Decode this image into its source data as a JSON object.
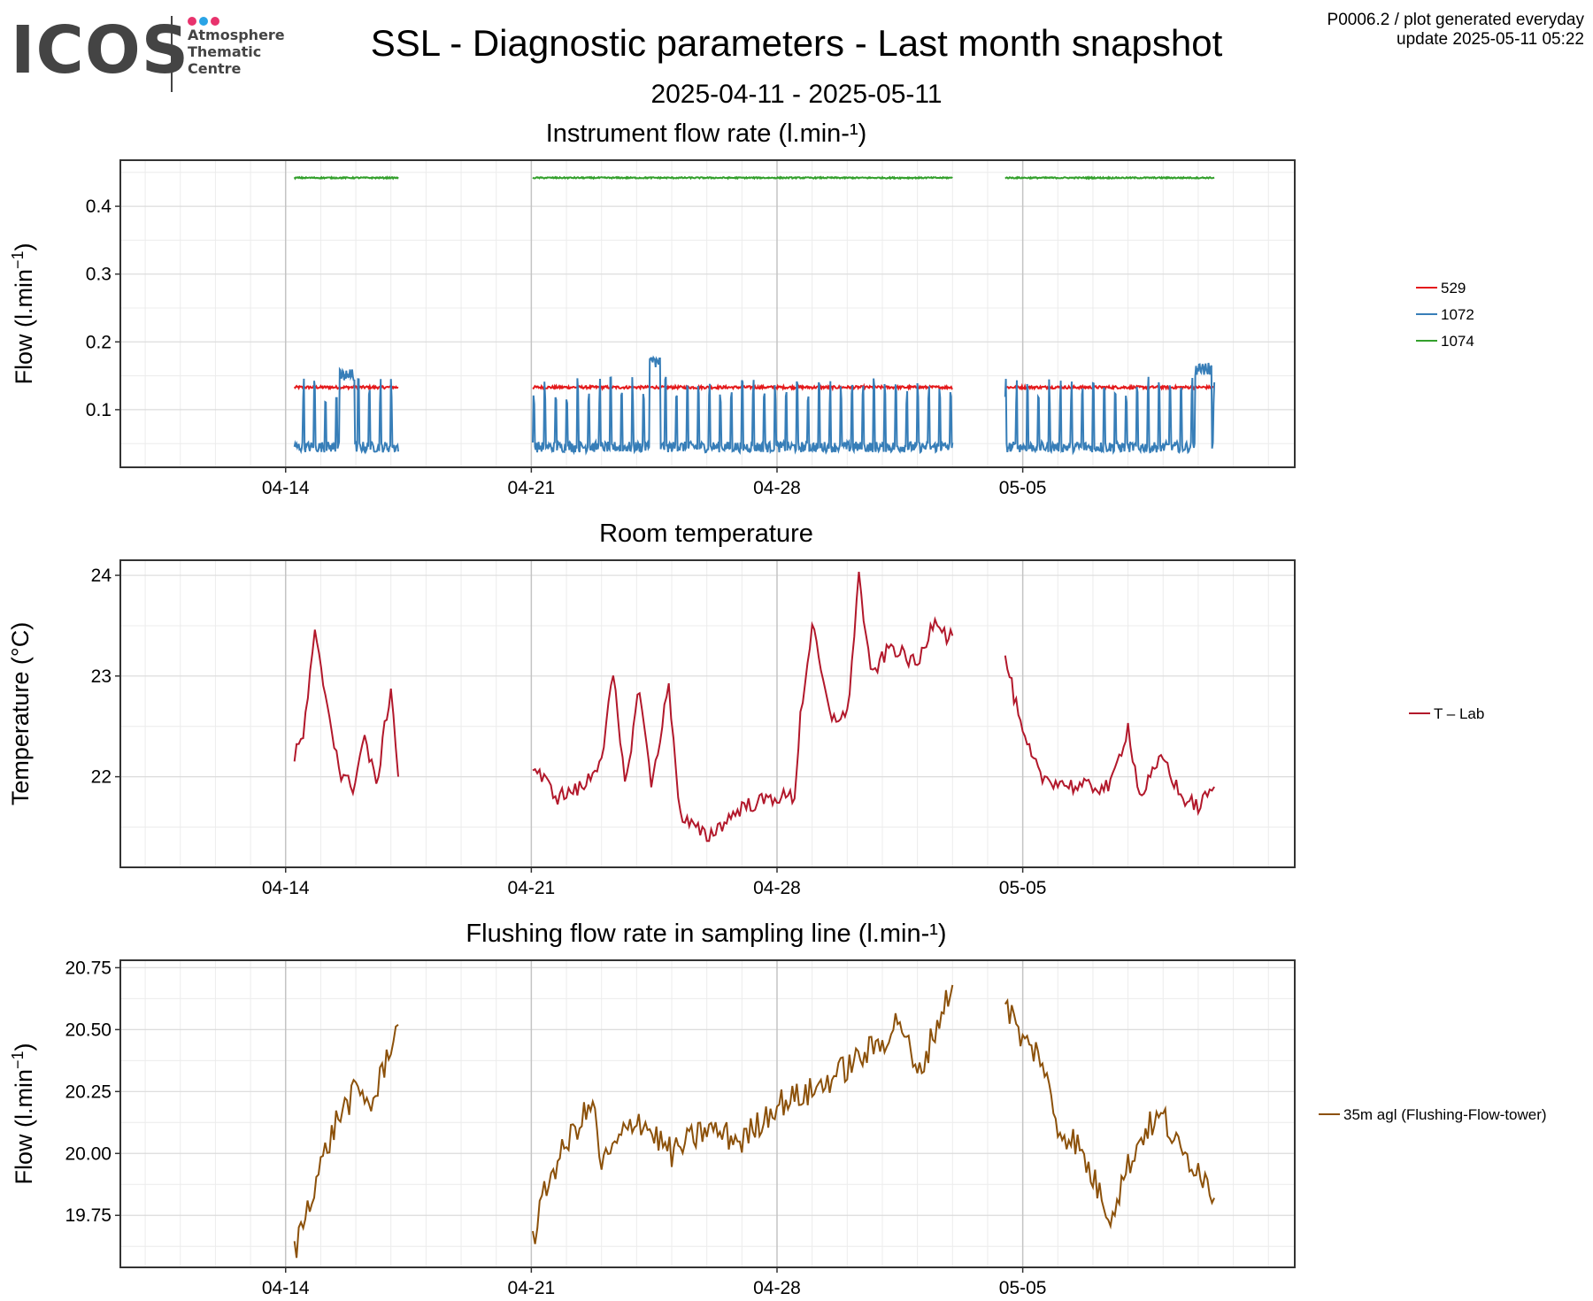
{
  "header": {
    "logo": {
      "text": "ICOS",
      "sub_lines": [
        "Atmosphere",
        "Thematic",
        "Centre"
      ],
      "dot_colors": [
        "#e8336d",
        "#2aa4e6",
        "#e8336d"
      ]
    },
    "title": "SSL - Diagnostic parameters - Last month snapshot",
    "subtitle": "2025-04-11 - 2025-05-11",
    "meta_line1": "P0006.2 / plot generated everyday",
    "meta_line2": "update  2025-05-11 05:22"
  },
  "chart_data": [
    {
      "type": "line",
      "title": "Instrument flow rate (l.min-¹)",
      "ylabel": "Flow (l.min",
      "ylabel_superscript": "−1",
      "ylabel_suffix": ")",
      "x_axis": {
        "type": "date",
        "range": [
          "2025-04-09 07:00",
          "2025-05-12 18:00"
        ],
        "ticks": [
          "2025-04-14",
          "2025-04-21",
          "2025-04-28",
          "2025-05-05"
        ],
        "tick_labels": [
          "04-14",
          "04-21",
          "04-28",
          "05-05"
        ]
      },
      "y_axis": {
        "range": [
          0.015,
          0.468
        ],
        "ticks": [
          0.1,
          0.2,
          0.3,
          0.4
        ],
        "tick_labels": [
          "0.1",
          "0.2",
          "0.3",
          "0.4"
        ]
      },
      "grid": true,
      "legend_position": "right",
      "series": [
        {
          "name": "529",
          "color": "#e41a1c",
          "kind": "flat",
          "base": 0.133,
          "noise": 0.002,
          "segments": [
            [
              "2025-04-14 06:00",
              "2025-04-17 05:00"
            ],
            [
              "2025-04-21 01:00",
              "2025-05-03 00:00"
            ],
            [
              "2025-05-04 12:00",
              "2025-05-10 11:00"
            ]
          ]
        },
        {
          "name": "1072",
          "color": "#377eb8",
          "kind": "spiky",
          "base": 0.045,
          "noise": 0.008,
          "spike": 0.09,
          "segments": [
            [
              "2025-04-14 06:00",
              "2025-04-17 05:00"
            ],
            [
              "2025-04-21 01:00",
              "2025-05-03 00:00"
            ],
            [
              "2025-05-04 12:00",
              "2025-05-10 11:00"
            ]
          ],
          "plateaus": [
            [
              "2025-04-15 13:00",
              "2025-04-15 23:00",
              0.15
            ],
            [
              "2025-04-24 09:00",
              "2025-04-24 16:00",
              0.17
            ],
            [
              "2025-05-09 22:00",
              "2025-05-10 09:00",
              0.16
            ]
          ]
        },
        {
          "name": "1074",
          "color": "#33a02c",
          "kind": "flat",
          "base": 0.442,
          "noise": 0.001,
          "segments": [
            [
              "2025-04-14 06:00",
              "2025-04-17 05:00"
            ],
            [
              "2025-04-21 01:00",
              "2025-05-03 00:00"
            ],
            [
              "2025-05-04 12:00",
              "2025-05-10 11:00"
            ]
          ]
        }
      ]
    },
    {
      "type": "line",
      "title": "Room temperature",
      "ylabel": "Temperature (°C)",
      "x_axis": {
        "type": "date",
        "range": [
          "2025-04-09 07:00",
          "2025-05-12 18:00"
        ],
        "ticks": [
          "2025-04-14",
          "2025-04-21",
          "2025-04-28",
          "2025-05-05"
        ],
        "tick_labels": [
          "04-14",
          "04-21",
          "04-28",
          "05-05"
        ]
      },
      "y_axis": {
        "range": [
          21.1,
          24.15
        ],
        "ticks": [
          22,
          23,
          24
        ],
        "tick_labels": [
          "22",
          "23",
          "24"
        ]
      },
      "grid": true,
      "legend_position": "right",
      "series": [
        {
          "name": "T – Lab",
          "color": "#b2182b",
          "kind": "path",
          "noise": 0.08,
          "segments": [
            [
              [
                "2025-04-14 06:00",
                22.2
              ],
              [
                "2025-04-14 12:00",
                22.4
              ],
              [
                "2025-04-14 20:00",
                23.4
              ],
              [
                "2025-04-15 06:00",
                22.6
              ],
              [
                "2025-04-15 14:00",
                22.0
              ],
              [
                "2025-04-15 22:00",
                21.9
              ],
              [
                "2025-04-16 06:00",
                22.4
              ],
              [
                "2025-04-16 14:00",
                21.9
              ],
              [
                "2025-04-17 00:00",
                22.9
              ],
              [
                "2025-04-17 05:00",
                22.0
              ]
            ],
            [
              [
                "2025-04-21 01:00",
                22.1
              ],
              [
                "2025-04-21 18:00",
                21.8
              ],
              [
                "2025-04-22 12:00",
                21.9
              ],
              [
                "2025-04-23 00:00",
                22.2
              ],
              [
                "2025-04-23 08:00",
                23.0
              ],
              [
                "2025-04-23 16:00",
                21.9
              ],
              [
                "2025-04-24 02:00",
                22.9
              ],
              [
                "2025-04-24 10:00",
                21.9
              ],
              [
                "2025-04-24 22:00",
                22.9
              ],
              [
                "2025-04-25 06:00",
                21.6
              ],
              [
                "2025-04-26 00:00",
                21.4
              ],
              [
                "2025-04-27 00:00",
                21.7
              ],
              [
                "2025-04-28 00:00",
                21.8
              ],
              [
                "2025-04-28 12:00",
                21.8
              ],
              [
                "2025-04-28 16:00",
                22.6
              ],
              [
                "2025-04-29 00:00",
                23.5
              ],
              [
                "2025-04-29 12:00",
                22.6
              ],
              [
                "2025-04-30 00:00",
                22.6
              ],
              [
                "2025-04-30 08:00",
                24.0
              ],
              [
                "2025-04-30 16:00",
                23.0
              ],
              [
                "2025-05-01 06:00",
                23.3
              ],
              [
                "2025-05-02 00:00",
                23.1
              ],
              [
                "2025-05-02 12:00",
                23.6
              ],
              [
                "2025-05-02 20:00",
                23.4
              ],
              [
                "2025-05-03 00:00",
                23.4
              ]
            ],
            [
              [
                "2025-05-04 12:00",
                23.2
              ],
              [
                "2025-05-05 00:00",
                22.4
              ],
              [
                "2025-05-05 12:00",
                22.0
              ],
              [
                "2025-05-06 12:00",
                21.9
              ],
              [
                "2025-05-07 12:00",
                21.9
              ],
              [
                "2025-05-08 00:00",
                22.5
              ],
              [
                "2025-05-08 08:00",
                21.8
              ],
              [
                "2025-05-09 00:00",
                22.2
              ],
              [
                "2025-05-09 12:00",
                21.8
              ],
              [
                "2025-05-10 00:00",
                21.7
              ],
              [
                "2025-05-10 11:00",
                21.9
              ]
            ]
          ]
        }
      ]
    },
    {
      "type": "line",
      "title": "Flushing flow rate in sampling line (l.min-¹)",
      "ylabel": "Flow (l.min",
      "ylabel_superscript": "−1",
      "ylabel_suffix": ")",
      "x_axis": {
        "type": "date",
        "range": [
          "2025-04-09 07:00",
          "2025-05-12 18:00"
        ],
        "ticks": [
          "2025-04-14",
          "2025-04-21",
          "2025-04-28",
          "2025-05-05"
        ],
        "tick_labels": [
          "04-14",
          "04-21",
          "04-28",
          "05-05"
        ]
      },
      "y_axis": {
        "range": [
          19.54,
          20.78
        ],
        "ticks": [
          19.75,
          20.0,
          20.25,
          20.5,
          20.75
        ],
        "tick_labels": [
          "19.75",
          "20.00",
          "20.25",
          "20.50",
          "20.75"
        ]
      },
      "grid": true,
      "legend_position": "right",
      "series": [
        {
          "name": "35m agl (Flushing-Flow-tower)",
          "color": "#8c510a",
          "kind": "path",
          "noise": 0.06,
          "segments": [
            [
              [
                "2025-04-14 06:00",
                19.6
              ],
              [
                "2025-04-14 18:00",
                19.85
              ],
              [
                "2025-04-15 00:00",
                19.95
              ],
              [
                "2025-04-15 12:00",
                20.15
              ],
              [
                "2025-04-16 00:00",
                20.25
              ],
              [
                "2025-04-16 12:00",
                20.2
              ],
              [
                "2025-04-17 00:00",
                20.45
              ],
              [
                "2025-04-17 05:00",
                20.52
              ]
            ],
            [
              [
                "2025-04-21 01:00",
                19.65
              ],
              [
                "2025-04-21 12:00",
                19.9
              ],
              [
                "2025-04-22 06:00",
                20.1
              ],
              [
                "2025-04-22 18:00",
                20.2
              ],
              [
                "2025-04-23 00:00",
                19.95
              ],
              [
                "2025-04-24 00:00",
                20.15
              ],
              [
                "2025-04-25 00:00",
                20.0
              ],
              [
                "2025-04-25 12:00",
                20.05
              ],
              [
                "2025-04-26 00:00",
                20.1
              ],
              [
                "2025-04-27 00:00",
                20.05
              ],
              [
                "2025-04-28 00:00",
                20.2
              ],
              [
                "2025-04-29 00:00",
                20.25
              ],
              [
                "2025-04-30 00:00",
                20.35
              ],
              [
                "2025-05-01 00:00",
                20.45
              ],
              [
                "2025-05-01 12:00",
                20.55
              ],
              [
                "2025-05-02 00:00",
                20.3
              ],
              [
                "2025-05-02 12:00",
                20.5
              ],
              [
                "2025-05-03 00:00",
                20.68
              ]
            ],
            [
              [
                "2025-05-04 12:00",
                20.62
              ],
              [
                "2025-05-05 00:00",
                20.45
              ],
              [
                "2025-05-05 12:00",
                20.4
              ],
              [
                "2025-05-06 00:00",
                20.1
              ],
              [
                "2025-05-06 12:00",
                20.05
              ],
              [
                "2025-05-07 00:00",
                19.9
              ],
              [
                "2025-05-07 12:00",
                19.75
              ],
              [
                "2025-05-08 00:00",
                19.95
              ],
              [
                "2025-05-08 12:00",
                20.1
              ],
              [
                "2025-05-09 00:00",
                20.15
              ],
              [
                "2025-05-09 12:00",
                20.0
              ],
              [
                "2025-05-10 00:00",
                19.95
              ],
              [
                "2025-05-10 11:00",
                19.82
              ]
            ]
          ]
        }
      ]
    }
  ]
}
